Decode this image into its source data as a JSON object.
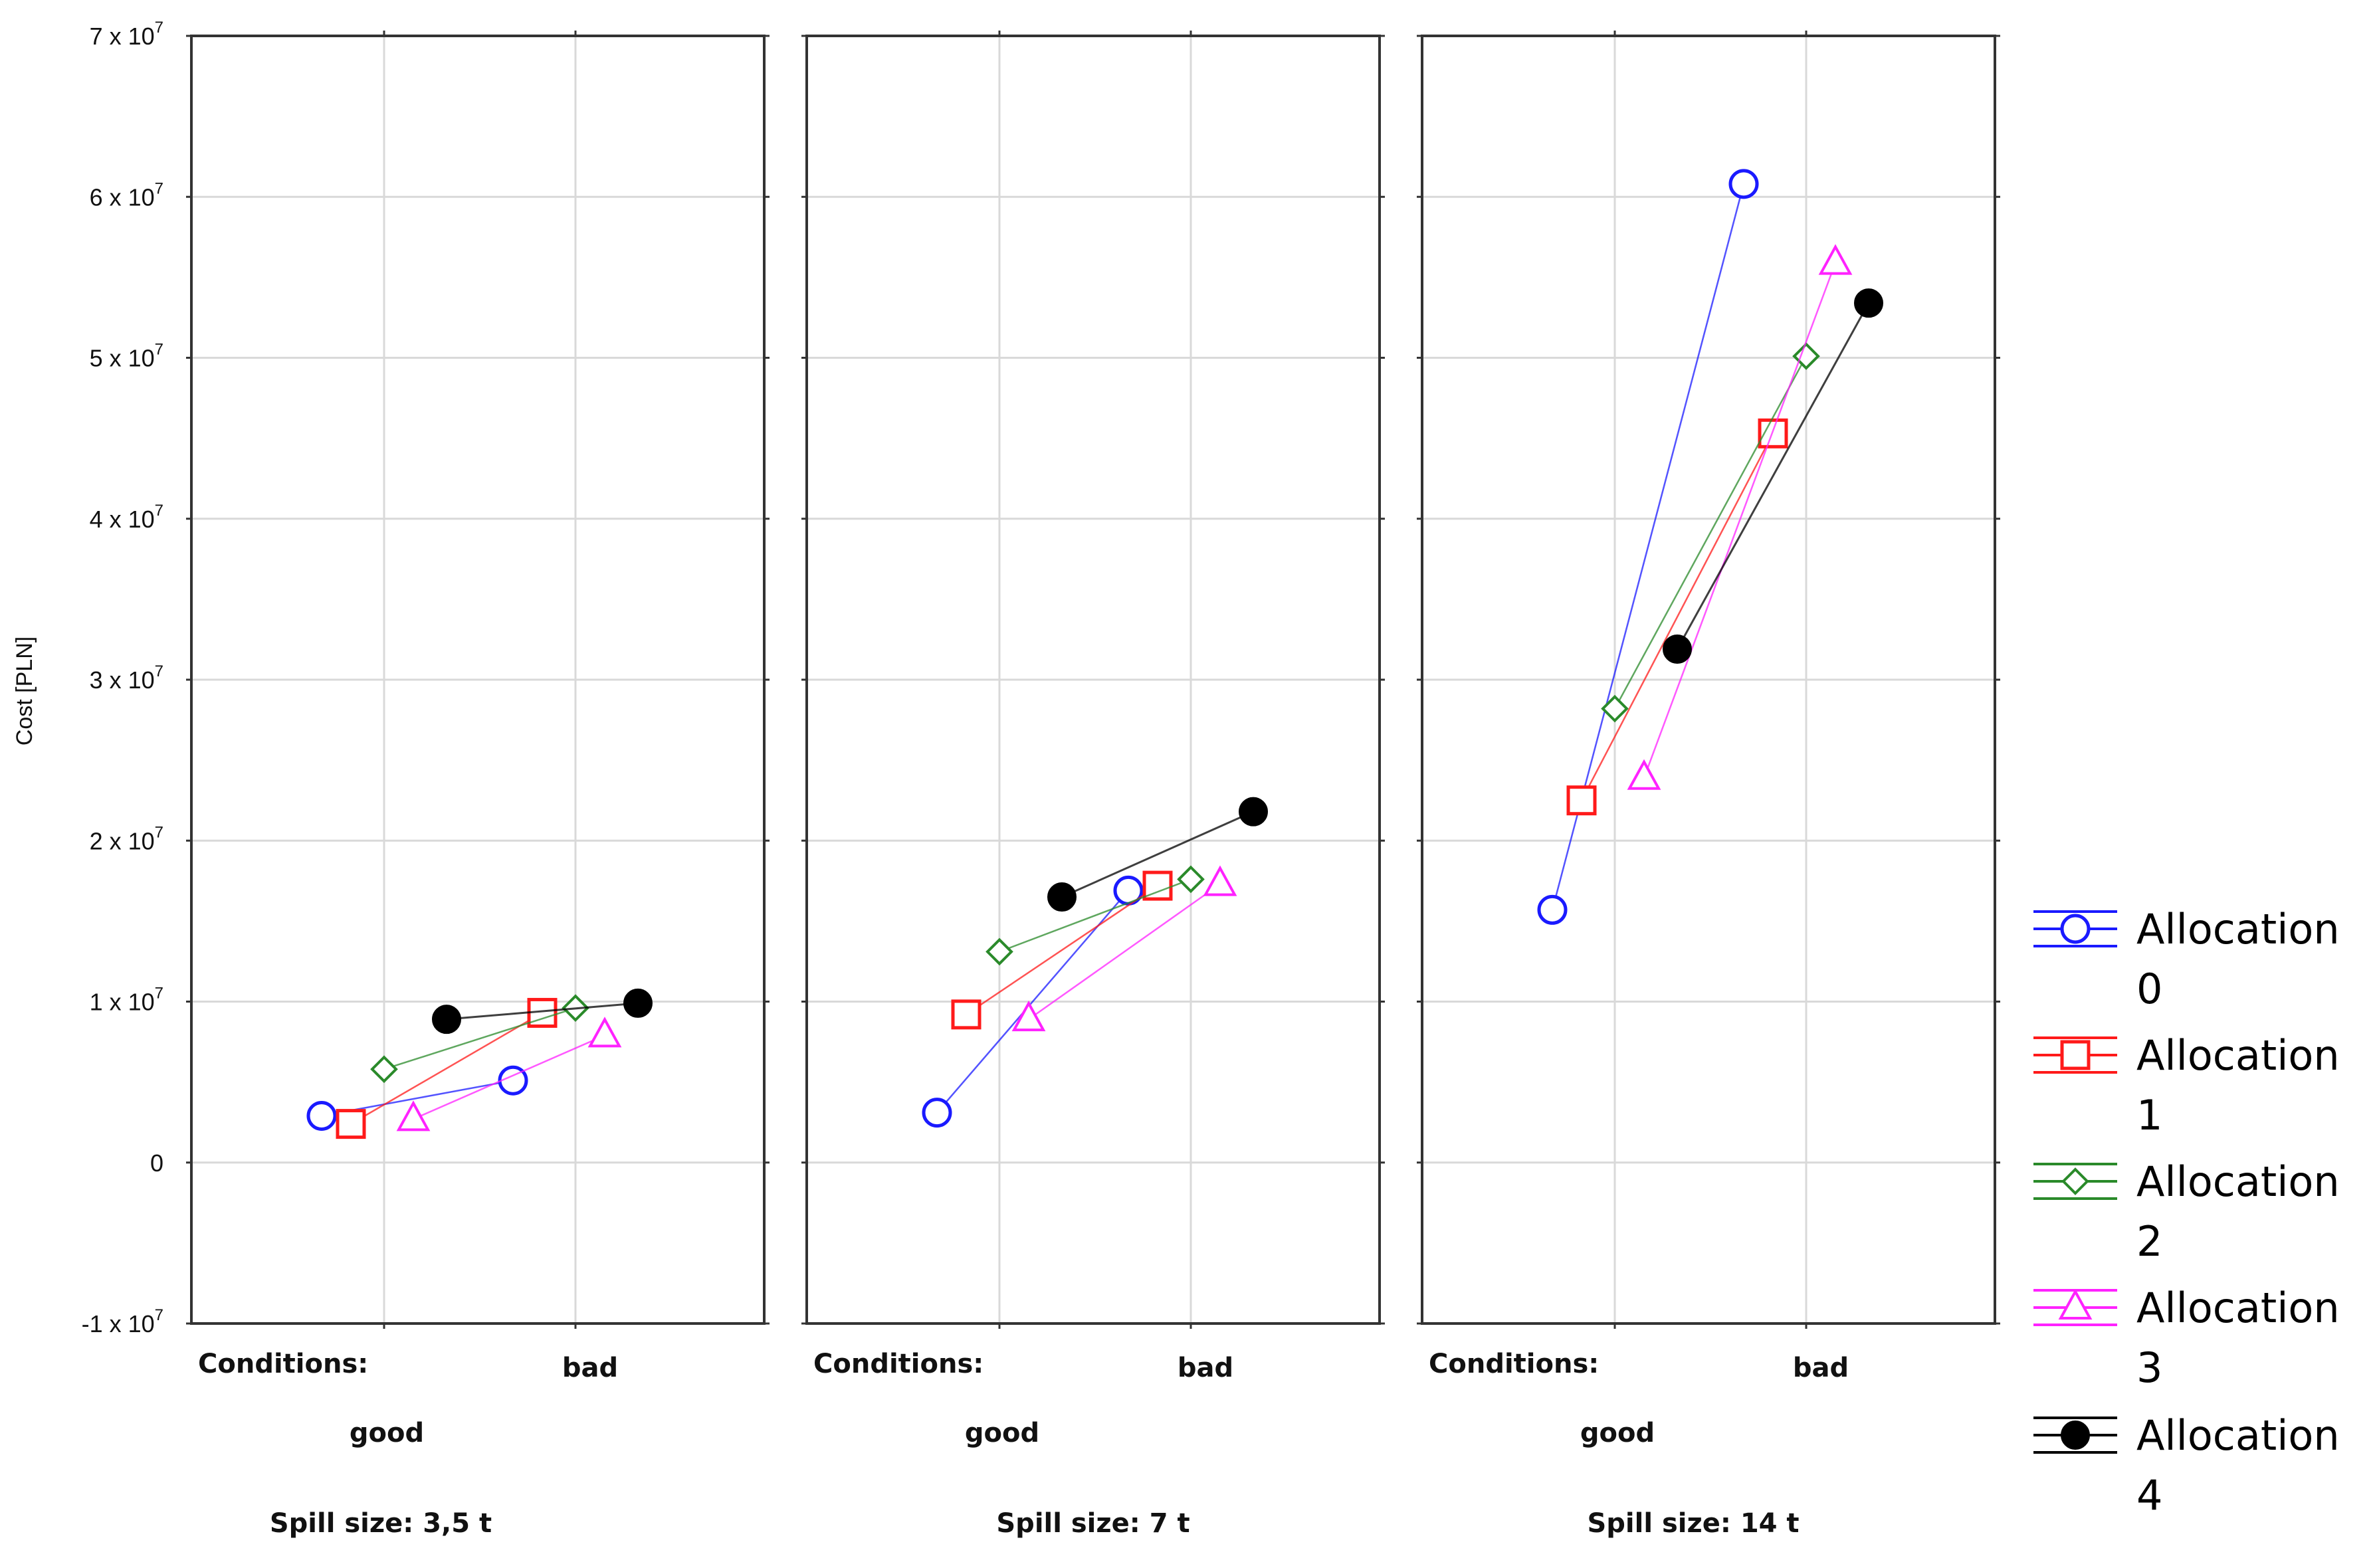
{
  "chart_data": {
    "type": "line",
    "ylabel": "Cost [PLN]",
    "ylim": [
      -10000000,
      70000000
    ],
    "yticks": [
      {
        "value": 70000000,
        "base": "7 x 10",
        "exp": "7"
      },
      {
        "value": 60000000,
        "base": "6 x 10",
        "exp": "7"
      },
      {
        "value": 50000000,
        "base": "5 x 10",
        "exp": "7"
      },
      {
        "value": 40000000,
        "base": "4 x 10",
        "exp": "7"
      },
      {
        "value": 30000000,
        "base": "3 x 10",
        "exp": "7"
      },
      {
        "value": 20000000,
        "base": "2 x 10",
        "exp": "7"
      },
      {
        "value": 10000000,
        "base": "1 x 10",
        "exp": "7"
      },
      {
        "value": 0,
        "base": "0",
        "exp": ""
      },
      {
        "value": -10000000,
        "base": "-1 x 10",
        "exp": "7"
      }
    ],
    "conditions_label": "Conditions:",
    "categories": [
      "good",
      "bad"
    ],
    "panels": [
      {
        "title": "Spill size: 3,5 t",
        "series": [
          {
            "name": "Allocation 0",
            "values": [
              2900000,
              5100000
            ]
          },
          {
            "name": "Allocation 1",
            "values": [
              2400000,
              9300000
            ]
          },
          {
            "name": "Allocation 2",
            "values": [
              5800000,
              9600000
            ]
          },
          {
            "name": "Allocation 3",
            "values": [
              2700000,
              7900000
            ]
          },
          {
            "name": "Allocation 4",
            "values": [
              8900000,
              9900000
            ]
          }
        ]
      },
      {
        "title": "Spill size: 7 t",
        "series": [
          {
            "name": "Allocation 0",
            "values": [
              3100000,
              16900000
            ]
          },
          {
            "name": "Allocation 1",
            "values": [
              9200000,
              17200000
            ]
          },
          {
            "name": "Allocation 2",
            "values": [
              13100000,
              17600000
            ]
          },
          {
            "name": "Allocation 3",
            "values": [
              8900000,
              17300000
            ]
          },
          {
            "name": "Allocation 4",
            "values": [
              16500000,
              21800000
            ]
          }
        ]
      },
      {
        "title": "Spill size: 14 t",
        "series": [
          {
            "name": "Allocation 0",
            "values": [
              15700000,
              60800000
            ]
          },
          {
            "name": "Allocation 1",
            "values": [
              22500000,
              45300000
            ]
          },
          {
            "name": "Allocation 2",
            "values": [
              28200000,
              50100000
            ]
          },
          {
            "name": "Allocation 3",
            "values": [
              23900000,
              55900000
            ]
          },
          {
            "name": "Allocation 4",
            "values": [
              31900000,
              53400000
            ]
          }
        ]
      }
    ],
    "legend": [
      {
        "name": "Allocation 0",
        "line1": "Allocation",
        "line2": "0",
        "marker": "circle-open",
        "color": "#1a1aff"
      },
      {
        "name": "Allocation 1",
        "line1": "Allocation",
        "line2": "1",
        "marker": "square-open",
        "color": "#ff1a1a"
      },
      {
        "name": "Allocation 2",
        "line1": "Allocation",
        "line2": "2",
        "marker": "diamond-open",
        "color": "#2a8a2a"
      },
      {
        "name": "Allocation 3",
        "line1": "Allocation",
        "line2": "3",
        "marker": "triangle-open",
        "color": "#ff22ff"
      },
      {
        "name": "Allocation 4",
        "line1": "Allocation",
        "line2": "4",
        "marker": "circle-filled",
        "color": "#000000"
      }
    ],
    "legend_placement": "right"
  }
}
